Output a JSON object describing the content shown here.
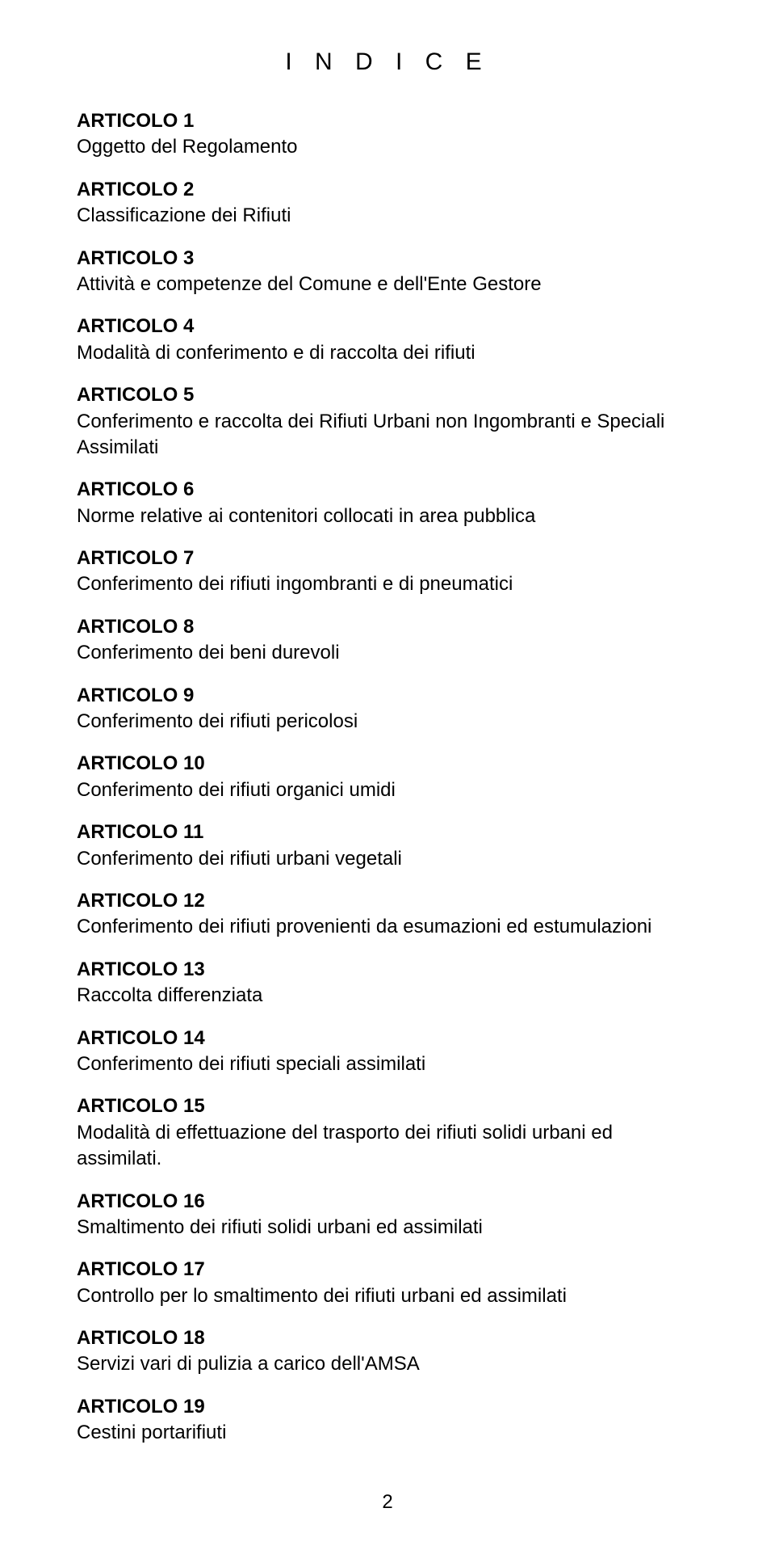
{
  "document": {
    "title": "I N D I C E",
    "page_number": "2",
    "text_color": "#000000",
    "background_color": "#ffffff",
    "font_family": "Arial",
    "title_fontsize": 30,
    "body_fontsize": 24,
    "entries": [
      {
        "heading": "ARTICOLO 1",
        "desc": "Oggetto del Regolamento"
      },
      {
        "heading": "ARTICOLO 2",
        "desc": "Classificazione dei Rifiuti"
      },
      {
        "heading": "ARTICOLO 3",
        "desc": "Attività e competenze del Comune e dell'Ente Gestore"
      },
      {
        "heading": "ARTICOLO 4",
        "desc": "Modalità di conferimento e di raccolta dei rifiuti"
      },
      {
        "heading": "ARTICOLO 5",
        "desc": "Conferimento e raccolta dei Rifiuti Urbani non Ingombranti e Speciali Assimilati"
      },
      {
        "heading": "ARTICOLO 6",
        "desc": "Norme relative ai contenitori collocati in area pubblica"
      },
      {
        "heading": "ARTICOLO 7",
        "desc": "Conferimento dei rifiuti ingombranti e di pneumatici"
      },
      {
        "heading": "ARTICOLO 8",
        "desc": "Conferimento dei beni durevoli"
      },
      {
        "heading": "ARTICOLO 9",
        "desc": "Conferimento dei rifiuti pericolosi"
      },
      {
        "heading": "ARTICOLO 10",
        "desc": "Conferimento dei rifiuti organici umidi"
      },
      {
        "heading": "ARTICOLO 11",
        "desc": "Conferimento dei rifiuti urbani vegetali"
      },
      {
        "heading": "ARTICOLO 12",
        "desc": "Conferimento dei rifiuti provenienti da esumazioni ed estumulazioni"
      },
      {
        "heading": "ARTICOLO 13",
        "desc": "Raccolta differenziata"
      },
      {
        "heading": "ARTICOLO 14",
        "desc": "Conferimento dei rifiuti speciali assimilati"
      },
      {
        "heading": "ARTICOLO 15",
        "desc": "Modalità di effettuazione del trasporto dei rifiuti solidi urbani ed assimilati."
      },
      {
        "heading": "ARTICOLO 16",
        "desc": "Smaltimento dei rifiuti solidi urbani ed assimilati"
      },
      {
        "heading": "ARTICOLO 17",
        "desc": "Controllo per lo smaltimento dei rifiuti urbani ed assimilati"
      },
      {
        "heading": "ARTICOLO 18",
        "desc": "Servizi vari di pulizia a carico dell'AMSA"
      },
      {
        "heading": "ARTICOLO 19",
        "desc": "Cestini portarifiuti"
      }
    ]
  }
}
